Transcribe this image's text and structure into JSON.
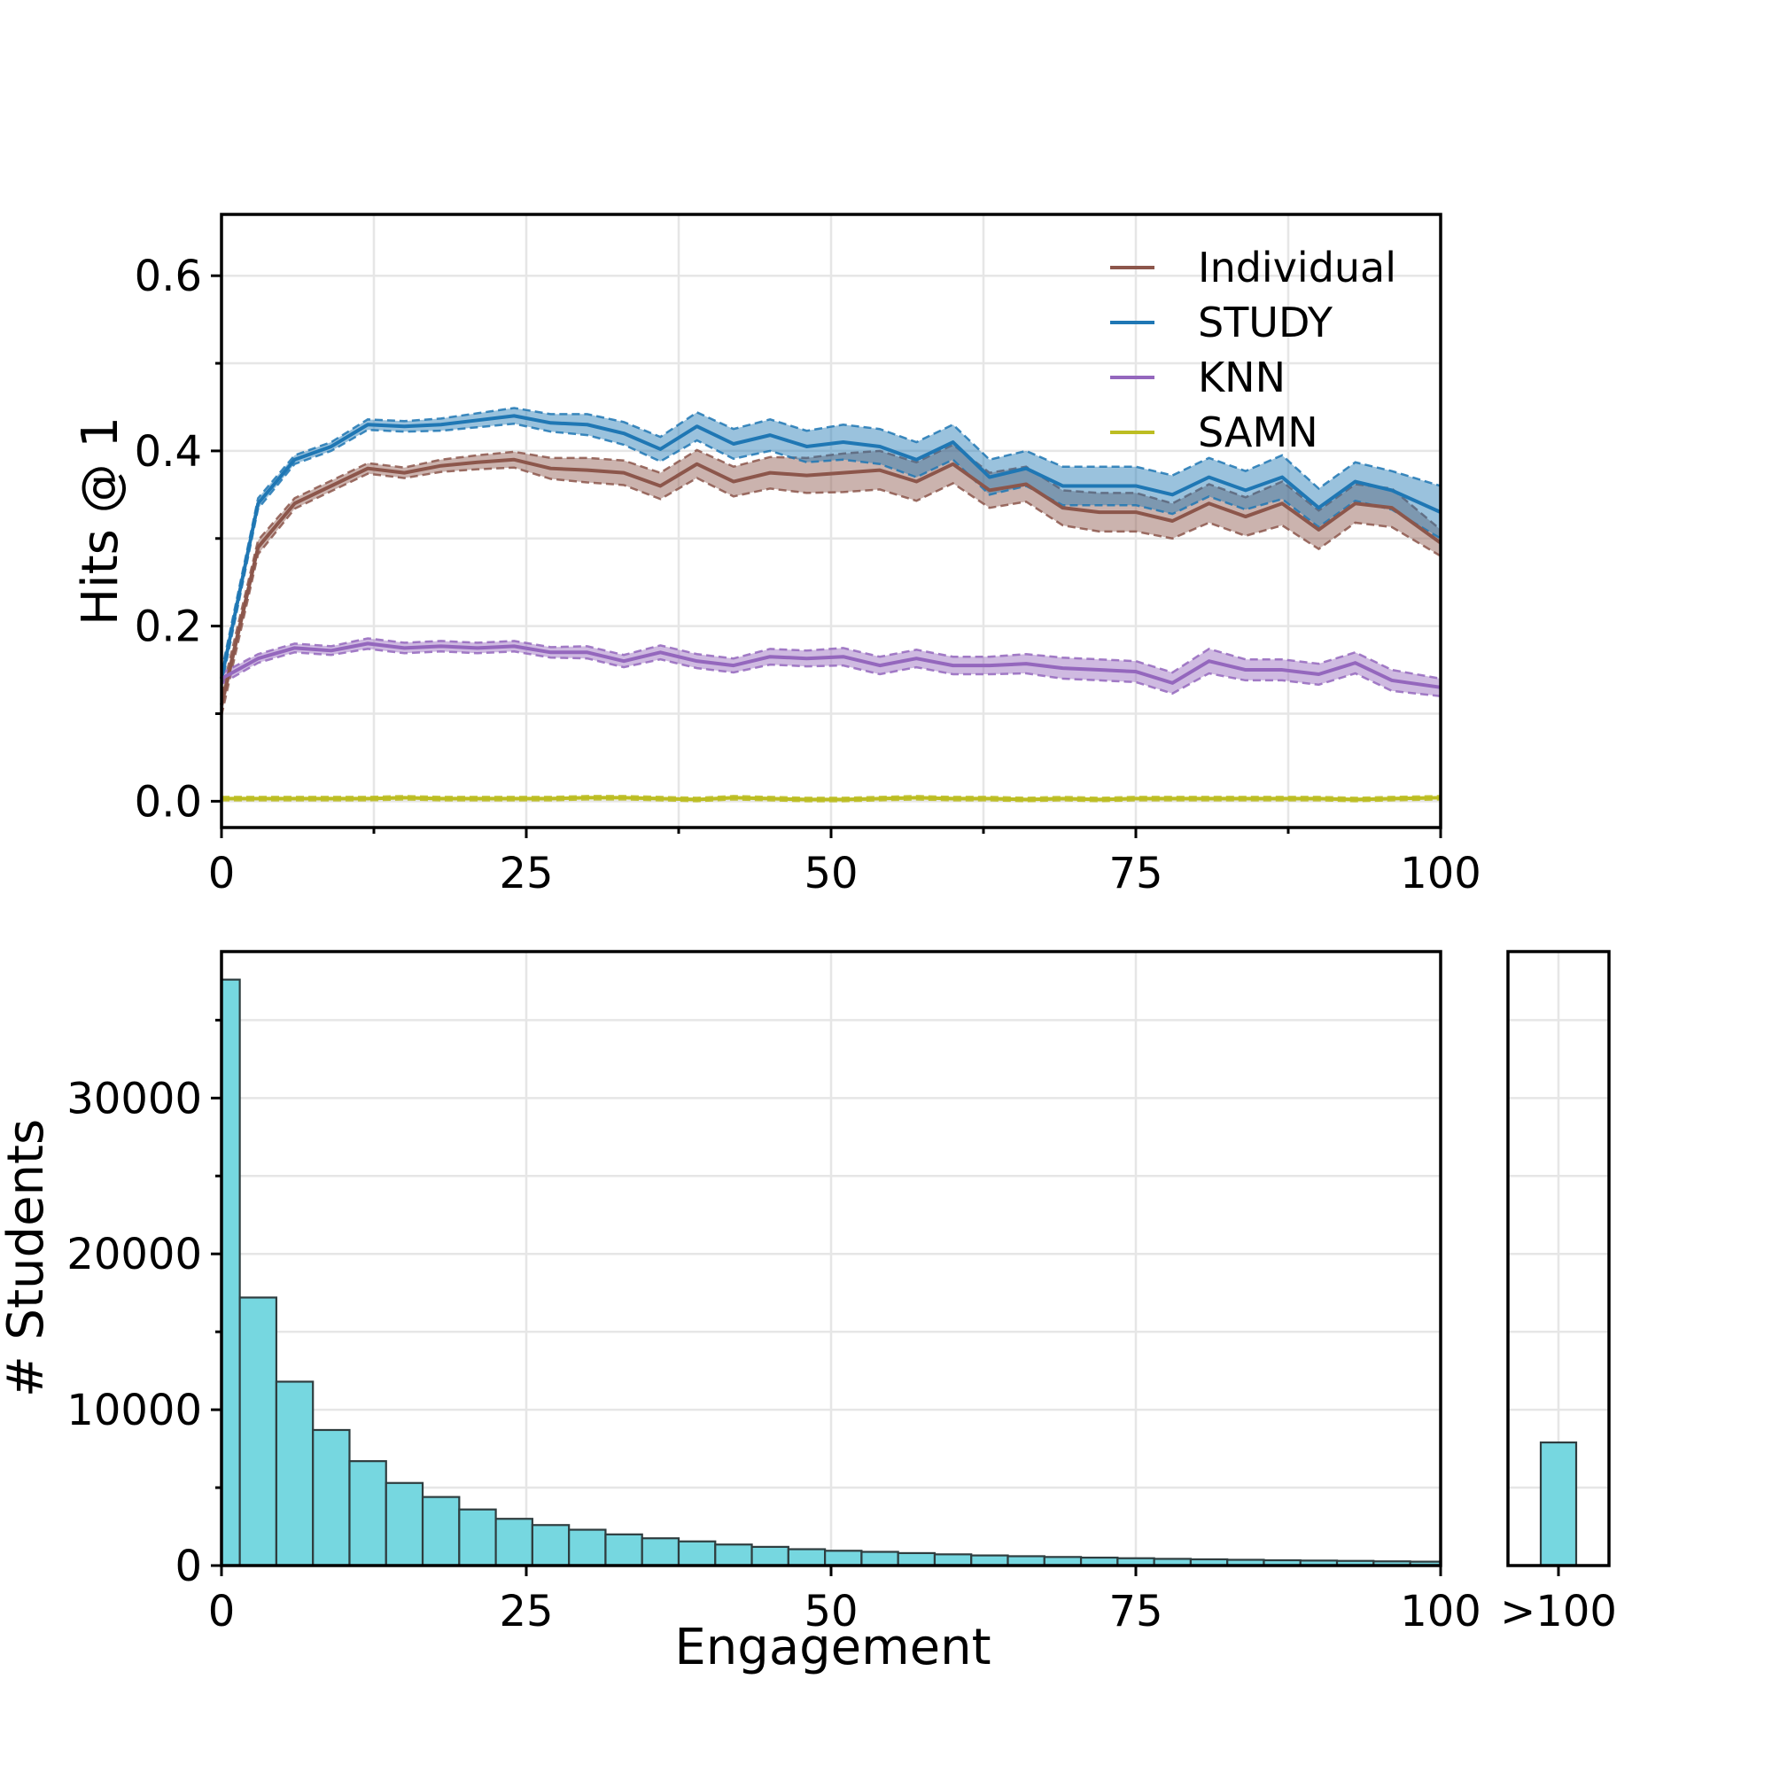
{
  "chart_data": [
    {
      "type": "line",
      "ylabel": "Hits @ 1",
      "xlabel": "",
      "xlim": [
        0,
        100
      ],
      "ylim": [
        -0.03,
        0.67
      ],
      "xticks": [
        0,
        25,
        50,
        75,
        100
      ],
      "yticks": [
        0.0,
        0.2,
        0.4,
        0.6
      ],
      "ytick_labels": [
        "0.0",
        "0.2",
        "0.4",
        "0.6"
      ],
      "grid": true,
      "legend_position": "top-right",
      "x": [
        0,
        3,
        6,
        9,
        12,
        15,
        18,
        21,
        24,
        27,
        30,
        33,
        36,
        39,
        42,
        45,
        48,
        51,
        54,
        57,
        60,
        63,
        66,
        69,
        72,
        75,
        78,
        81,
        84,
        87,
        90,
        93,
        96,
        100
      ],
      "series": [
        {
          "name": "Individual",
          "color": "#8c564b",
          "values": [
            0.11,
            0.29,
            0.34,
            0.36,
            0.38,
            0.375,
            0.383,
            0.387,
            0.39,
            0.38,
            0.378,
            0.375,
            0.36,
            0.385,
            0.365,
            0.375,
            0.372,
            0.375,
            0.378,
            0.365,
            0.385,
            0.355,
            0.362,
            0.335,
            0.33,
            0.33,
            0.32,
            0.34,
            0.325,
            0.34,
            0.31,
            0.34,
            0.335,
            0.295
          ],
          "band": [
            0.012,
            0.008,
            0.006,
            0.006,
            0.006,
            0.006,
            0.007,
            0.008,
            0.009,
            0.012,
            0.014,
            0.014,
            0.015,
            0.016,
            0.017,
            0.018,
            0.02,
            0.022,
            0.022,
            0.022,
            0.022,
            0.02,
            0.02,
            0.02,
            0.022,
            0.022,
            0.02,
            0.022,
            0.022,
            0.025,
            0.022,
            0.022,
            0.022,
            0.015
          ]
        },
        {
          "name": "STUDY",
          "color": "#1f77b4",
          "values": [
            0.14,
            0.34,
            0.39,
            0.405,
            0.43,
            0.428,
            0.43,
            0.435,
            0.44,
            0.432,
            0.43,
            0.42,
            0.402,
            0.428,
            0.408,
            0.418,
            0.405,
            0.41,
            0.405,
            0.39,
            0.41,
            0.37,
            0.38,
            0.36,
            0.36,
            0.36,
            0.35,
            0.37,
            0.355,
            0.37,
            0.335,
            0.365,
            0.355,
            0.33
          ],
          "band": [
            0.008,
            0.006,
            0.005,
            0.005,
            0.006,
            0.006,
            0.007,
            0.008,
            0.009,
            0.01,
            0.012,
            0.013,
            0.014,
            0.016,
            0.017,
            0.018,
            0.018,
            0.02,
            0.02,
            0.02,
            0.02,
            0.02,
            0.02,
            0.022,
            0.022,
            0.022,
            0.022,
            0.022,
            0.022,
            0.025,
            0.022,
            0.022,
            0.022,
            0.03
          ]
        },
        {
          "name": "KNN",
          "color": "#9467bd",
          "values": [
            0.14,
            0.163,
            0.175,
            0.172,
            0.18,
            0.175,
            0.177,
            0.175,
            0.177,
            0.17,
            0.17,
            0.16,
            0.17,
            0.16,
            0.155,
            0.165,
            0.163,
            0.165,
            0.155,
            0.163,
            0.155,
            0.155,
            0.157,
            0.152,
            0.15,
            0.148,
            0.135,
            0.16,
            0.15,
            0.15,
            0.145,
            0.158,
            0.138,
            0.13
          ],
          "band": [
            0.006,
            0.005,
            0.005,
            0.005,
            0.006,
            0.006,
            0.006,
            0.006,
            0.006,
            0.006,
            0.007,
            0.007,
            0.008,
            0.008,
            0.008,
            0.009,
            0.009,
            0.01,
            0.01,
            0.01,
            0.01,
            0.01,
            0.011,
            0.012,
            0.012,
            0.012,
            0.012,
            0.014,
            0.012,
            0.012,
            0.012,
            0.012,
            0.012,
            0.01
          ]
        },
        {
          "name": "SAMN",
          "color": "#bcbd22",
          "values": [
            0.003,
            0.003,
            0.003,
            0.003,
            0.003,
            0.004,
            0.003,
            0.003,
            0.003,
            0.003,
            0.004,
            0.004,
            0.003,
            0.002,
            0.004,
            0.003,
            0.002,
            0.002,
            0.003,
            0.004,
            0.003,
            0.003,
            0.002,
            0.003,
            0.002,
            0.003,
            0.003,
            0.003,
            0.003,
            0.003,
            0.003,
            0.002,
            0.003,
            0.004
          ],
          "band": [
            0.002,
            0.002,
            0.002,
            0.002,
            0.002,
            0.002,
            0.002,
            0.002,
            0.002,
            0.002,
            0.002,
            0.002,
            0.002,
            0.002,
            0.002,
            0.002,
            0.002,
            0.002,
            0.002,
            0.002,
            0.002,
            0.002,
            0.002,
            0.002,
            0.002,
            0.002,
            0.002,
            0.002,
            0.002,
            0.002,
            0.002,
            0.002,
            0.002,
            0.002
          ]
        }
      ]
    },
    {
      "type": "bar",
      "xlabel": "Engagement",
      "ylabel": "# Students",
      "xlim": [
        0,
        100
      ],
      "ylim": [
        0,
        39400
      ],
      "xticks": [
        0,
        25,
        50,
        75,
        100
      ],
      "yticks": [
        0,
        10000,
        20000,
        30000
      ],
      "ytick_labels": [
        "0",
        "10000",
        "20000",
        "30000"
      ],
      "grid": true,
      "bar_color": "#76d7e0",
      "bin_width": 3,
      "bins_start": [
        0,
        1.5,
        4.5,
        7.5,
        10.5,
        13.5,
        16.5,
        19.5,
        22.5,
        25.5,
        28.5,
        31.5,
        34.5,
        37.5,
        40.5,
        43.5,
        46.5,
        49.5,
        52.5,
        55.5,
        58.5,
        61.5,
        64.5,
        67.5,
        70.5,
        73.5,
        76.5,
        79.5,
        82.5,
        85.5,
        88.5,
        91.5,
        94.5,
        97.5
      ],
      "bins_end": [
        1.5,
        4.5,
        7.5,
        10.5,
        13.5,
        16.5,
        19.5,
        22.5,
        25.5,
        28.5,
        31.5,
        34.5,
        37.5,
        40.5,
        43.5,
        46.5,
        49.5,
        52.5,
        55.5,
        58.5,
        61.5,
        64.5,
        67.5,
        70.5,
        73.5,
        76.5,
        79.5,
        82.5,
        85.5,
        88.5,
        91.5,
        94.5,
        97.5,
        100
      ],
      "values": [
        37600,
        17200,
        11800,
        8700,
        6700,
        5300,
        4400,
        3600,
        3000,
        2600,
        2300,
        2000,
        1750,
        1550,
        1350,
        1200,
        1050,
        950,
        880,
        800,
        720,
        650,
        600,
        550,
        510,
        470,
        430,
        400,
        370,
        340,
        320,
        300,
        270,
        250
      ],
      "overflow": {
        "label": ">100",
        "value": 7900
      }
    }
  ]
}
